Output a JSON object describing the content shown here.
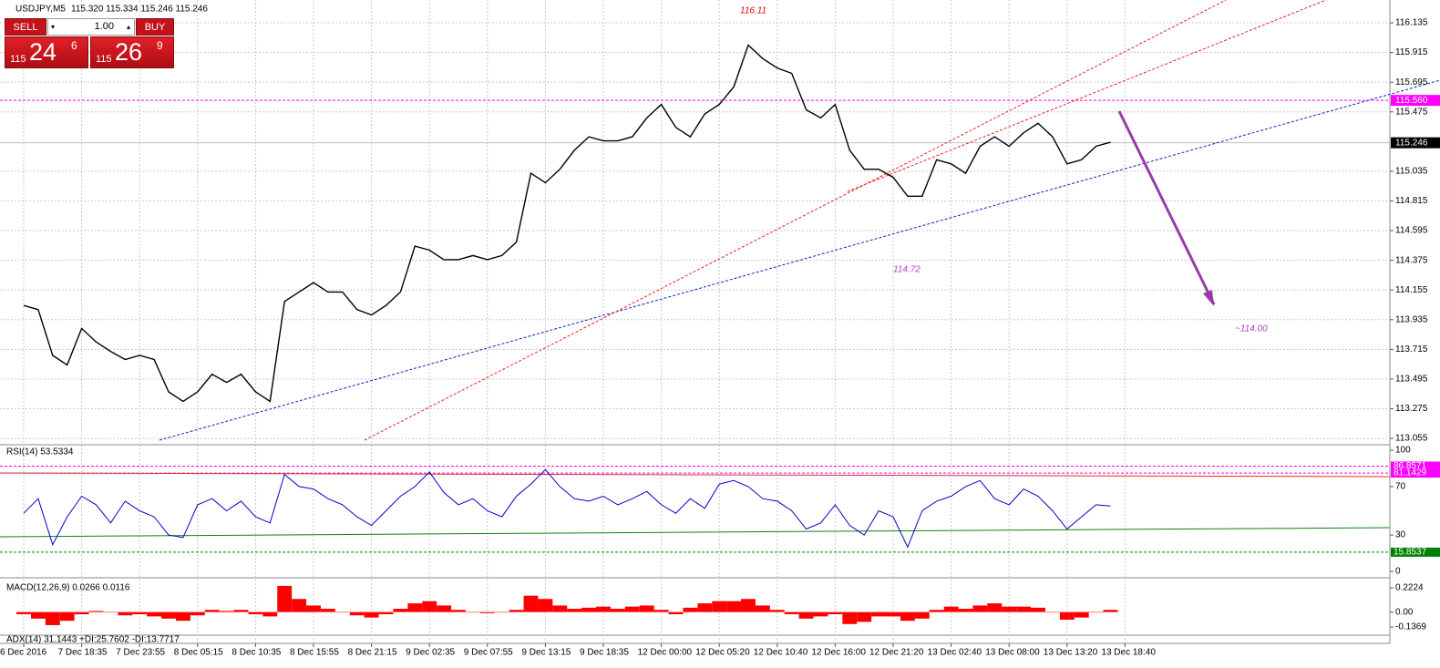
{
  "trade_panel": {
    "sell": "SELL",
    "lot": "1.00",
    "buy": "BUY",
    "bid": [
      "115",
      "24",
      "6"
    ],
    "ask": [
      "115",
      "26",
      "9"
    ]
  },
  "chart_data": [
    {
      "type": "line",
      "title": "USDJPY,M5",
      "subtitle": "115.320 115.334 115.246 115.246",
      "categories": [
        "6 Dec 2016",
        null,
        null,
        null,
        "7 Dec 18:35",
        null,
        null,
        null,
        "7 Dec 23:55",
        null,
        null,
        null,
        "8 Dec 05:15",
        null,
        null,
        null,
        "8 Dec 10:35",
        null,
        null,
        null,
        "8 Dec 15:55",
        null,
        null,
        null,
        "8 Dec 21:15",
        null,
        null,
        null,
        "9 Dec 02:35",
        null,
        null,
        null,
        "9 Dec 07:55",
        null,
        null,
        null,
        "9 Dec 13:15",
        null,
        null,
        null,
        "9 Dec 18:35",
        null,
        null,
        null,
        "12 Dec 00:00",
        null,
        null,
        null,
        "12 Dec 05:20",
        null,
        null,
        null,
        "12 Dec 10:40",
        null,
        null,
        null,
        "12 Dec 16:00",
        null,
        null,
        null,
        "12 Dec 21:20",
        null,
        null,
        null,
        "13 Dec 02:40",
        null,
        null,
        null,
        "13 Dec 08:00",
        null,
        null,
        null,
        "13 Dec 13:20",
        null,
        null,
        null,
        "13 Dec 18:40"
      ],
      "values": [
        114.04,
        114.01,
        113.67,
        113.6,
        113.87,
        113.77,
        113.7,
        113.64,
        113.67,
        113.64,
        113.4,
        113.33,
        113.4,
        113.53,
        113.47,
        113.53,
        113.4,
        113.33,
        114.07,
        114.14,
        114.21,
        114.14,
        114.14,
        114.01,
        113.97,
        114.04,
        114.14,
        114.48,
        114.45,
        114.38,
        114.38,
        114.41,
        114.38,
        114.41,
        114.51,
        115.02,
        114.95,
        115.05,
        115.19,
        115.29,
        115.26,
        115.26,
        115.29,
        115.43,
        115.53,
        115.36,
        115.29,
        115.46,
        115.53,
        115.66,
        115.97,
        115.87,
        115.8,
        115.76,
        115.49,
        115.43,
        115.53,
        115.19,
        115.05,
        115.05,
        114.99,
        114.85,
        114.85,
        115.12,
        115.09,
        115.02,
        115.22,
        115.29,
        115.22,
        115.32,
        115.39,
        115.29,
        115.09,
        115.12,
        115.22,
        115.25,
        null
      ],
      "color": "#000000",
      "ylim": [
        113.015,
        116.304
      ],
      "yticks": [
        116.135,
        115.915,
        115.695,
        115.475,
        115.035,
        114.815,
        114.595,
        114.375,
        114.155,
        113.935,
        113.715,
        113.495,
        113.275,
        113.055
      ],
      "grid": true,
      "level": {
        "value": 115.56,
        "label": "115.560"
      },
      "level_color": "#ff00ff",
      "price_line": 115.246,
      "annotations": [
        {
          "text": "116.11",
          "color": "#e00000"
        },
        {
          "text": "114.72",
          "color": "#b040c0"
        },
        {
          "text": "~114.00",
          "color": "#b040c0"
        }
      ]
    },
    {
      "type": "line",
      "title": "RSI(14) 53.5334",
      "color": "#0000cc",
      "values": [
        48,
        60,
        22,
        45,
        62,
        55,
        40,
        58,
        50,
        45,
        30,
        28,
        55,
        60,
        50,
        58,
        45,
        40,
        80,
        70,
        68,
        60,
        55,
        45,
        38,
        50,
        62,
        70,
        82,
        65,
        55,
        60,
        50,
        45,
        62,
        72,
        84,
        70,
        60,
        58,
        62,
        55,
        60,
        66,
        55,
        48,
        60,
        52,
        72,
        75,
        70,
        60,
        58,
        50,
        35,
        40,
        55,
        38,
        30,
        50,
        45,
        20,
        50,
        58,
        62,
        70,
        75,
        60,
        55,
        68,
        62,
        50,
        35,
        45,
        55,
        54,
        null
      ],
      "ylim": [
        0,
        100
      ],
      "yticks": [
        100,
        70,
        30,
        0
      ],
      "levels": [
        86.8571,
        81.1429,
        15.8537
      ],
      "level_colors": [
        "#ff00ff",
        "#ff00ff",
        "#008000"
      ]
    },
    {
      "type": "bar",
      "title": "MACD(12,26,9) 0.0266 0.0116",
      "color": "#ff0000",
      "values": [
        -0.02,
        -0.06,
        -0.12,
        -0.08,
        -0.02,
        0.01,
        0.0,
        -0.03,
        -0.02,
        -0.04,
        -0.06,
        -0.08,
        -0.03,
        0.02,
        0.01,
        0.02,
        -0.02,
        -0.04,
        0.24,
        0.12,
        0.06,
        0.03,
        0.0,
        -0.03,
        -0.05,
        -0.02,
        0.03,
        0.08,
        0.1,
        0.06,
        0.02,
        0.0,
        -0.01,
        0.0,
        0.02,
        0.15,
        0.12,
        0.06,
        0.03,
        0.04,
        0.05,
        0.03,
        0.05,
        0.06,
        0.02,
        -0.02,
        0.04,
        0.08,
        0.1,
        0.1,
        0.12,
        0.06,
        0.02,
        -0.02,
        -0.06,
        -0.04,
        -0.02,
        -0.11,
        -0.09,
        -0.04,
        -0.04,
        -0.08,
        -0.06,
        0.02,
        0.05,
        0.03,
        0.06,
        0.08,
        0.05,
        0.05,
        0.04,
        0.0,
        -0.07,
        -0.05,
        0.0,
        0.02,
        null
      ],
      "ylim": [
        -0.1369,
        0.2224
      ],
      "yticks": [
        0.2224,
        {
          "value": 0,
          "label": "0.00"
        },
        -0.1369
      ]
    },
    {
      "type": "line",
      "title": "ADX(14) 31.1443 +DI:25.7602 -DI:13.7717"
    }
  ]
}
